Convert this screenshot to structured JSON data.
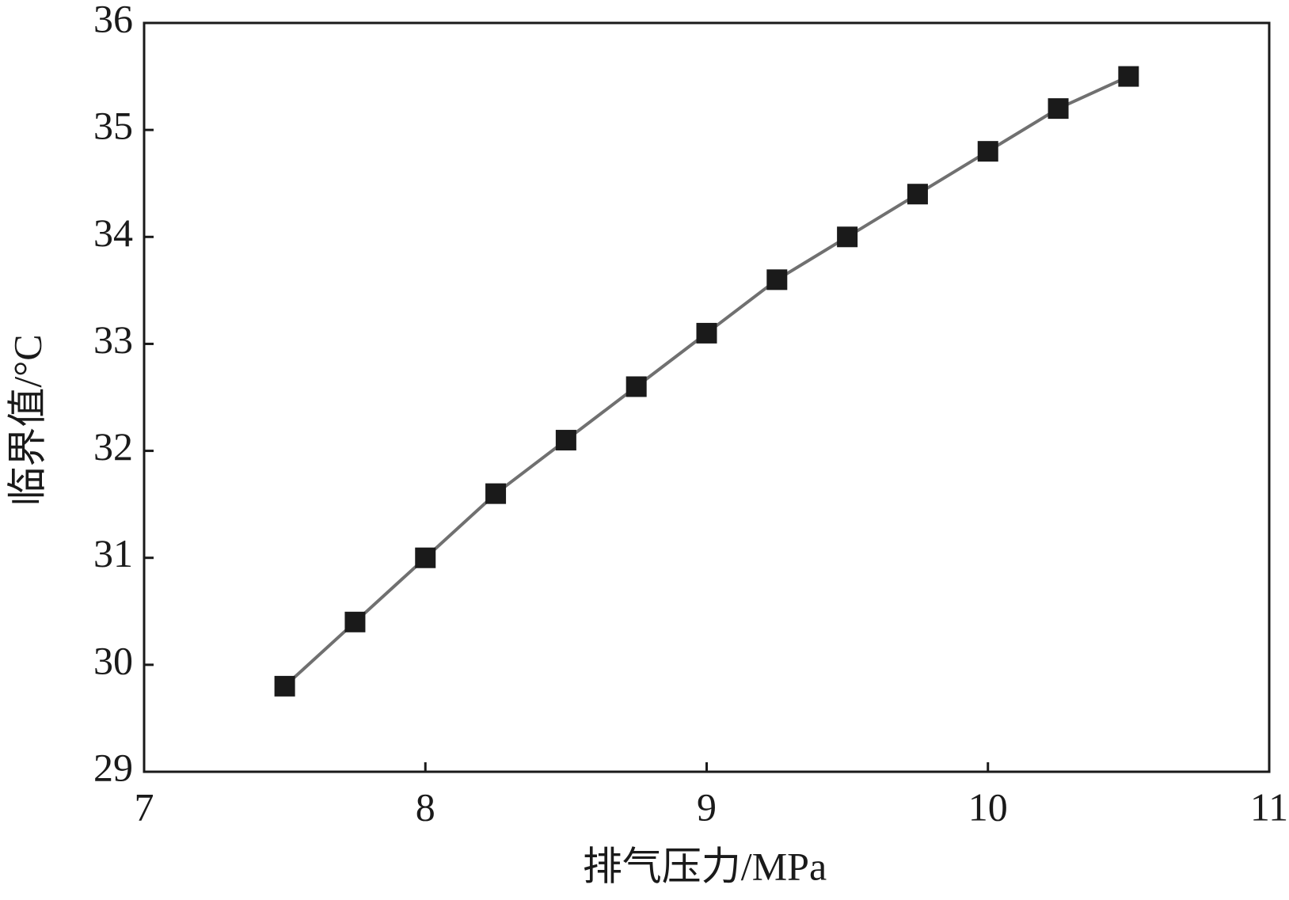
{
  "chart_data": {
    "type": "line",
    "x_label": "排气压力/MPa",
    "y_label": "临界值/°C",
    "x": [
      7.5,
      7.75,
      8,
      8.25,
      8.5,
      8.75,
      9,
      9.25,
      9.5,
      9.75,
      10,
      10.25,
      10.5
    ],
    "series": [
      {
        "color": "#1a1a1a",
        "line_color": "#707070",
        "marker": "square",
        "values": [
          29.8,
          30.4,
          31.0,
          31.6,
          32.1,
          32.6,
          33.1,
          33.6,
          34.0,
          34.4,
          34.8,
          35.2,
          35.5
        ]
      }
    ],
    "xlim": [
      7,
      11
    ],
    "xticks": [
      7,
      8,
      9,
      10,
      11
    ],
    "ylim": [
      29,
      36
    ],
    "yticks": [
      29,
      30,
      31,
      32,
      33,
      34,
      35,
      36
    ],
    "grid": false
  }
}
